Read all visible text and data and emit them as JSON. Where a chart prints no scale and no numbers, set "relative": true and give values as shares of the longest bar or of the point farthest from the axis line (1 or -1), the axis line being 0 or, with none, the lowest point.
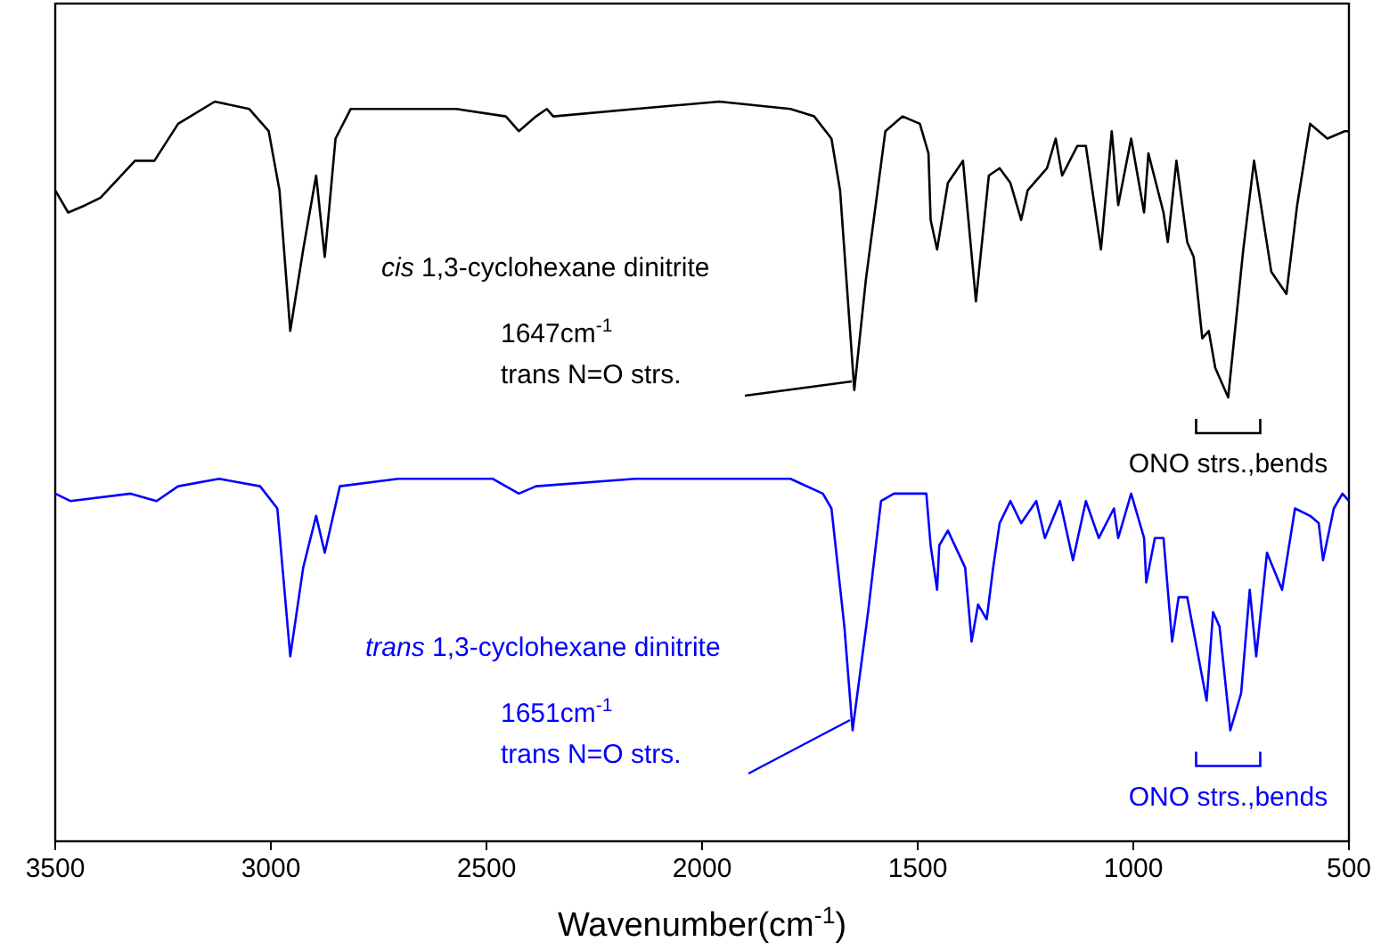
{
  "chart_data": {
    "type": "line",
    "relative": true,
    "xlabel": "Wavenumber(cm$^{-1}$)",
    "xlim": [
      3500,
      500
    ],
    "xticks": [
      3500,
      3000,
      2500,
      2000,
      1500,
      1000,
      500
    ],
    "grid": false,
    "marker": "none",
    "line_style": "solid",
    "series": [
      {
        "name": "cis 1,3-cyclohexane dinitrite",
        "color": "#000000",
        "x": [
          3500,
          3470,
          3430,
          3395,
          3315,
          3270,
          3215,
          3130,
          3050,
          3005,
          2980,
          2955,
          2925,
          2895,
          2875,
          2850,
          2815,
          2705,
          2570,
          2455,
          2425,
          2385,
          2360,
          2345,
          2155,
          1960,
          1795,
          1740,
          1700,
          1680,
          1647,
          1620,
          1575,
          1535,
          1495,
          1475,
          1470,
          1455,
          1430,
          1395,
          1365,
          1335,
          1310,
          1285,
          1260,
          1245,
          1200,
          1180,
          1165,
          1130,
          1110,
          1075,
          1050,
          1035,
          1005,
          975,
          965,
          930,
          920,
          900,
          875,
          860,
          840,
          825,
          810,
          780,
          745,
          720,
          680,
          645,
          620,
          590,
          550,
          510,
          500
        ],
        "values": [
          0.88,
          0.85,
          0.86,
          0.87,
          0.92,
          0.92,
          0.97,
          1.0,
          0.99,
          0.96,
          0.88,
          0.69,
          0.8,
          0.9,
          0.79,
          0.95,
          0.99,
          0.99,
          0.99,
          0.98,
          0.96,
          0.98,
          0.99,
          0.98,
          0.99,
          1.0,
          0.99,
          0.98,
          0.95,
          0.88,
          0.61,
          0.76,
          0.96,
          0.98,
          0.97,
          0.93,
          0.84,
          0.8,
          0.89,
          0.92,
          0.73,
          0.9,
          0.91,
          0.89,
          0.84,
          0.88,
          0.91,
          0.95,
          0.9,
          0.94,
          0.94,
          0.8,
          0.96,
          0.86,
          0.95,
          0.85,
          0.93,
          0.85,
          0.81,
          0.92,
          0.81,
          0.79,
          0.68,
          0.69,
          0.64,
          0.6,
          0.8,
          0.92,
          0.77,
          0.74,
          0.86,
          0.97,
          0.95,
          0.96,
          0.96
        ]
      },
      {
        "name": "trans 1,3-cyclohexane dinitrite",
        "color": "#0000ff",
        "x": [
          3500,
          3465,
          3325,
          3265,
          3215,
          3120,
          3025,
          2985,
          2955,
          2925,
          2895,
          2875,
          2840,
          2705,
          2485,
          2425,
          2385,
          2155,
          1960,
          1795,
          1720,
          1700,
          1670,
          1651,
          1615,
          1585,
          1555,
          1480,
          1470,
          1455,
          1450,
          1430,
          1390,
          1375,
          1360,
          1340,
          1325,
          1310,
          1285,
          1260,
          1225,
          1205,
          1170,
          1140,
          1110,
          1080,
          1045,
          1035,
          1005,
          975,
          970,
          950,
          930,
          910,
          895,
          875,
          830,
          815,
          800,
          775,
          750,
          730,
          715,
          690,
          655,
          625,
          590,
          570,
          560,
          535,
          515,
          500
        ],
        "values": [
          0.47,
          0.46,
          0.47,
          0.46,
          0.48,
          0.49,
          0.48,
          0.45,
          0.25,
          0.37,
          0.44,
          0.39,
          0.48,
          0.49,
          0.49,
          0.47,
          0.48,
          0.49,
          0.49,
          0.49,
          0.47,
          0.45,
          0.29,
          0.15,
          0.31,
          0.46,
          0.47,
          0.47,
          0.4,
          0.34,
          0.4,
          0.42,
          0.37,
          0.27,
          0.32,
          0.3,
          0.37,
          0.43,
          0.46,
          0.43,
          0.46,
          0.41,
          0.46,
          0.38,
          0.46,
          0.41,
          0.45,
          0.41,
          0.47,
          0.41,
          0.35,
          0.41,
          0.41,
          0.27,
          0.33,
          0.33,
          0.19,
          0.31,
          0.29,
          0.15,
          0.2,
          0.34,
          0.25,
          0.39,
          0.34,
          0.45,
          0.44,
          0.43,
          0.38,
          0.45,
          0.47,
          0.46
        ]
      }
    ],
    "annotations": [
      "1647cm$^{-1}$\ntrans N=O strs.",
      {
        "text": "ONO strs.,bends",
        "x": 780,
        "y": 0.6
      },
      "1651cm$^{-1}$\ntrans N=O strs.",
      {
        "text": "ONO strs.,bends",
        "x": 780,
        "y": 0.15
      }
    ]
  }
}
